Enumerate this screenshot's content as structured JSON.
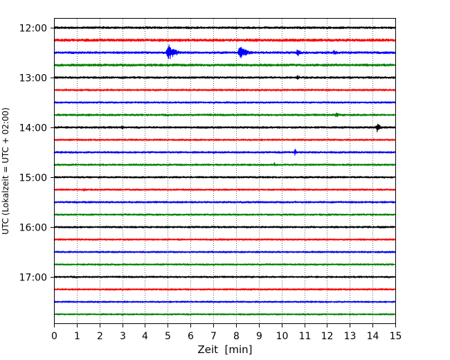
{
  "chart_data": {
    "type": "line",
    "title": "",
    "xlabel": "Zeit  [min]",
    "ylabel": "UTC (Lokalzeit = UTC + 02:00)",
    "xlim": [
      0,
      15
    ],
    "x_ticks": [
      0,
      1,
      2,
      3,
      4,
      5,
      6,
      7,
      8,
      9,
      10,
      11,
      12,
      13,
      14,
      15
    ],
    "x_tick_labels": [
      "0",
      "1",
      "2",
      "3",
      "4",
      "5",
      "6",
      "7",
      "8",
      "9",
      "10",
      "11",
      "12",
      "13",
      "14",
      "15"
    ],
    "y_tick_labels": [
      "12:00",
      "13:00",
      "14:00",
      "15:00",
      "16:00",
      "17:00"
    ],
    "y_tick_rows": [
      0,
      4,
      8,
      12,
      16,
      20
    ],
    "grid": {
      "vertical": true,
      "style": "dotted"
    },
    "trace_interval_min": 15,
    "trace_count": 24,
    "trace_colors": [
      "#000000",
      "#ff0000",
      "#0000ff",
      "#008000"
    ],
    "baseline_amplitude": [
      1.6,
      2.0,
      1.6,
      1.8,
      1.5,
      1.4,
      1.3,
      1.5,
      1.5,
      1.3,
      1.4,
      1.4,
      1.4,
      1.3,
      1.4,
      1.3,
      1.4,
      1.3,
      1.3,
      1.3,
      1.3,
      1.3,
      1.2,
      1.2
    ],
    "events": [
      {
        "trace": 2,
        "minute": 5.0,
        "amplitude": 14,
        "duration_min": 0.9
      },
      {
        "trace": 2,
        "minute": 8.15,
        "amplitude": 11,
        "duration_min": 0.9
      },
      {
        "trace": 2,
        "minute": 10.7,
        "amplitude": 6,
        "duration_min": 0.6
      },
      {
        "trace": 2,
        "minute": 12.3,
        "amplitude": 4,
        "duration_min": 0.6
      },
      {
        "trace": 4,
        "minute": 10.7,
        "amplitude": 6,
        "duration_min": 0.25
      },
      {
        "trace": 7,
        "minute": 12.4,
        "amplitude": 4,
        "duration_min": 0.5
      },
      {
        "trace": 8,
        "minute": 3.0,
        "amplitude": 3,
        "duration_min": 0.4
      },
      {
        "trace": 8,
        "minute": 14.2,
        "amplitude": 7,
        "duration_min": 0.5
      },
      {
        "trace": 10,
        "minute": 10.6,
        "amplitude": 6,
        "duration_min": 0.2
      },
      {
        "trace": 11,
        "minute": 9.7,
        "amplitude": 4,
        "duration_min": 0.15
      },
      {
        "trace": 13,
        "minute": 1.3,
        "amplitude": 3,
        "duration_min": 0.2
      }
    ]
  }
}
